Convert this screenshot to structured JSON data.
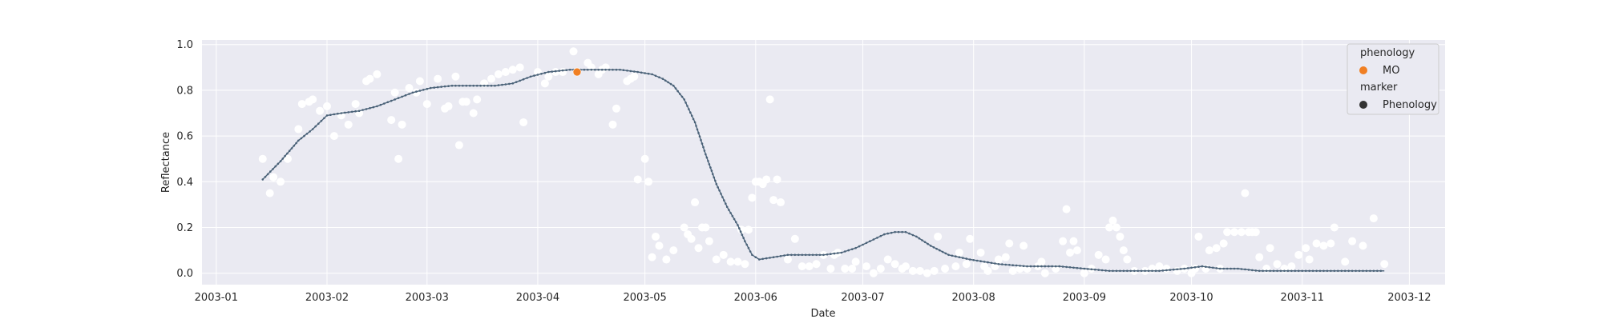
{
  "chart_data": {
    "type": "scatter",
    "xlabel": "Date",
    "ylabel": "Reflectance",
    "xlim": [
      "2002-12-28",
      "2003-12-11"
    ],
    "ylim": [
      -0.05,
      1.02
    ],
    "x_ticks": [
      "2003-01-01",
      "2003-02-01",
      "2003-03-01",
      "2003-04-01",
      "2003-05-01",
      "2003-06-01",
      "2003-07-01",
      "2003-08-01",
      "2003-09-01",
      "2003-10-01",
      "2003-11-01",
      "2003-12-01"
    ],
    "x_tick_labels": [
      "2003-01",
      "2003-02",
      "2003-03",
      "2003-04",
      "2003-05",
      "2003-06",
      "2003-07",
      "2003-08",
      "2003-09",
      "2003-10",
      "2003-11",
      "2003-12"
    ],
    "y_ticks": [
      0.0,
      0.2,
      0.4,
      0.6,
      0.8,
      1.0
    ],
    "y_tick_labels": [
      "0.0",
      "0.2",
      "0.4",
      "0.6",
      "0.8",
      "1.0"
    ],
    "grid": true,
    "style": "seaborn-darkgrid",
    "colors": {
      "background": "#eaeaf2",
      "grid": "#ffffff",
      "observations": "#ffffff",
      "curve": "#4a6278",
      "phenology_mo": "#f07f23",
      "legend_marker": "#333333"
    },
    "series": [
      {
        "role": "observations",
        "points": [
          [
            "2003-01-14",
            0.5
          ],
          [
            "2003-01-16",
            0.35
          ],
          [
            "2003-01-17",
            0.42
          ],
          [
            "2003-01-19",
            0.4
          ],
          [
            "2003-01-21",
            0.5
          ],
          [
            "2003-01-24",
            0.63
          ],
          [
            "2003-01-25",
            0.74
          ],
          [
            "2003-01-27",
            0.75
          ],
          [
            "2003-01-28",
            0.76
          ],
          [
            "2003-01-30",
            0.71
          ],
          [
            "2003-02-01",
            0.73
          ],
          [
            "2003-02-03",
            0.6
          ],
          [
            "2003-02-05",
            0.69
          ],
          [
            "2003-02-07",
            0.65
          ],
          [
            "2003-02-09",
            0.74
          ],
          [
            "2003-02-10",
            0.7
          ],
          [
            "2003-02-12",
            0.84
          ],
          [
            "2003-02-13",
            0.85
          ],
          [
            "2003-02-15",
            0.87
          ],
          [
            "2003-02-19",
            0.67
          ],
          [
            "2003-02-20",
            0.79
          ],
          [
            "2003-02-21",
            0.5
          ],
          [
            "2003-02-22",
            0.65
          ],
          [
            "2003-02-24",
            0.81
          ],
          [
            "2003-02-26",
            0.79
          ],
          [
            "2003-02-27",
            0.84
          ],
          [
            "2003-03-01",
            0.74
          ],
          [
            "2003-03-04",
            0.85
          ],
          [
            "2003-03-06",
            0.72
          ],
          [
            "2003-03-07",
            0.73
          ],
          [
            "2003-03-09",
            0.86
          ],
          [
            "2003-03-10",
            0.56
          ],
          [
            "2003-03-11",
            0.75
          ],
          [
            "2003-03-12",
            0.75
          ],
          [
            "2003-03-14",
            0.7
          ],
          [
            "2003-03-15",
            0.76
          ],
          [
            "2003-03-17",
            0.83
          ],
          [
            "2003-03-19",
            0.85
          ],
          [
            "2003-03-21",
            0.87
          ],
          [
            "2003-03-23",
            0.88
          ],
          [
            "2003-03-25",
            0.89
          ],
          [
            "2003-03-27",
            0.9
          ],
          [
            "2003-03-28",
            0.66
          ],
          [
            "2003-04-01",
            0.88
          ],
          [
            "2003-04-03",
            0.83
          ],
          [
            "2003-04-04",
            0.86
          ],
          [
            "2003-04-06",
            0.88
          ],
          [
            "2003-04-08",
            0.88
          ],
          [
            "2003-04-11",
            0.97
          ],
          [
            "2003-04-15",
            0.92
          ],
          [
            "2003-04-16",
            0.9
          ],
          [
            "2003-04-18",
            0.87
          ],
          [
            "2003-04-19",
            0.89
          ],
          [
            "2003-04-20",
            0.9
          ],
          [
            "2003-04-22",
            0.65
          ],
          [
            "2003-04-23",
            0.72
          ],
          [
            "2003-04-26",
            0.84
          ],
          [
            "2003-04-27",
            0.85
          ],
          [
            "2003-04-28",
            0.86
          ],
          [
            "2003-04-29",
            0.41
          ],
          [
            "2003-05-01",
            0.5
          ],
          [
            "2003-05-02",
            0.4
          ],
          [
            "2003-05-03",
            0.07
          ],
          [
            "2003-05-04",
            0.16
          ],
          [
            "2003-05-05",
            0.12
          ],
          [
            "2003-05-07",
            0.06
          ],
          [
            "2003-05-09",
            0.1
          ],
          [
            "2003-05-12",
            0.2
          ],
          [
            "2003-05-13",
            0.17
          ],
          [
            "2003-05-14",
            0.15
          ],
          [
            "2003-05-15",
            0.31
          ],
          [
            "2003-05-16",
            0.11
          ],
          [
            "2003-05-17",
            0.2
          ],
          [
            "2003-05-18",
            0.2
          ],
          [
            "2003-05-19",
            0.14
          ],
          [
            "2003-05-21",
            0.06
          ],
          [
            "2003-05-23",
            0.08
          ],
          [
            "2003-05-25",
            0.05
          ],
          [
            "2003-05-27",
            0.05
          ],
          [
            "2003-05-28",
            0.19
          ],
          [
            "2003-05-29",
            0.04
          ],
          [
            "2003-05-30",
            0.19
          ],
          [
            "2003-05-31",
            0.33
          ],
          [
            "2003-06-01",
            0.4
          ],
          [
            "2003-06-02",
            0.4
          ],
          [
            "2003-06-03",
            0.39
          ],
          [
            "2003-06-04",
            0.41
          ],
          [
            "2003-06-05",
            0.76
          ],
          [
            "2003-06-06",
            0.32
          ],
          [
            "2003-06-07",
            0.41
          ],
          [
            "2003-06-08",
            0.31
          ],
          [
            "2003-06-10",
            0.06
          ],
          [
            "2003-06-12",
            0.15
          ],
          [
            "2003-06-14",
            0.03
          ],
          [
            "2003-06-16",
            0.03
          ],
          [
            "2003-06-18",
            0.04
          ],
          [
            "2003-06-20",
            0.08
          ],
          [
            "2003-06-22",
            0.02
          ],
          [
            "2003-06-23",
            0.08
          ],
          [
            "2003-06-24",
            0.09
          ],
          [
            "2003-06-26",
            0.02
          ],
          [
            "2003-06-28",
            0.02
          ],
          [
            "2003-06-29",
            0.05
          ],
          [
            "2003-07-02",
            0.03
          ],
          [
            "2003-07-04",
            0.0
          ],
          [
            "2003-07-06",
            0.02
          ],
          [
            "2003-07-08",
            0.06
          ],
          [
            "2003-07-10",
            0.04
          ],
          [
            "2003-07-12",
            0.02
          ],
          [
            "2003-07-13",
            0.03
          ],
          [
            "2003-07-15",
            0.01
          ],
          [
            "2003-07-17",
            0.01
          ],
          [
            "2003-07-19",
            0.0
          ],
          [
            "2003-07-21",
            0.01
          ],
          [
            "2003-07-22",
            0.16
          ],
          [
            "2003-07-24",
            0.02
          ],
          [
            "2003-07-27",
            0.03
          ],
          [
            "2003-07-28",
            0.09
          ],
          [
            "2003-07-30",
            0.04
          ],
          [
            "2003-07-31",
            0.15
          ],
          [
            "2003-08-03",
            0.09
          ],
          [
            "2003-08-04",
            0.03
          ],
          [
            "2003-08-05",
            0.01
          ],
          [
            "2003-08-07",
            0.03
          ],
          [
            "2003-08-08",
            0.06
          ],
          [
            "2003-08-10",
            0.07
          ],
          [
            "2003-08-11",
            0.13
          ],
          [
            "2003-08-12",
            0.01
          ],
          [
            "2003-08-14",
            0.02
          ],
          [
            "2003-08-15",
            0.12
          ],
          [
            "2003-08-16",
            0.02
          ],
          [
            "2003-08-19",
            0.03
          ],
          [
            "2003-08-20",
            0.05
          ],
          [
            "2003-08-21",
            0.0
          ],
          [
            "2003-08-24",
            0.02
          ],
          [
            "2003-08-26",
            0.14
          ],
          [
            "2003-08-27",
            0.28
          ],
          [
            "2003-08-28",
            0.09
          ],
          [
            "2003-08-29",
            0.14
          ],
          [
            "2003-08-30",
            0.1
          ],
          [
            "2003-09-01",
            0.0
          ],
          [
            "2003-09-03",
            0.02
          ],
          [
            "2003-09-05",
            0.08
          ],
          [
            "2003-09-07",
            0.06
          ],
          [
            "2003-09-08",
            0.2
          ],
          [
            "2003-09-09",
            0.23
          ],
          [
            "2003-09-10",
            0.2
          ],
          [
            "2003-09-11",
            0.16
          ],
          [
            "2003-09-12",
            0.1
          ],
          [
            "2003-09-13",
            0.06
          ],
          [
            "2003-09-15",
            0.01
          ],
          [
            "2003-09-18",
            0.01
          ],
          [
            "2003-09-20",
            0.02
          ],
          [
            "2003-09-22",
            0.03
          ],
          [
            "2003-09-24",
            0.02
          ],
          [
            "2003-09-27",
            0.01
          ],
          [
            "2003-09-29",
            0.02
          ],
          [
            "2003-10-01",
            0.0
          ],
          [
            "2003-10-02",
            0.02
          ],
          [
            "2003-10-03",
            0.16
          ],
          [
            "2003-10-05",
            0.02
          ],
          [
            "2003-10-06",
            0.1
          ],
          [
            "2003-10-08",
            0.11
          ],
          [
            "2003-10-09",
            0.02
          ],
          [
            "2003-10-10",
            0.13
          ],
          [
            "2003-10-11",
            0.18
          ],
          [
            "2003-10-13",
            0.18
          ],
          [
            "2003-10-15",
            0.18
          ],
          [
            "2003-10-16",
            0.35
          ],
          [
            "2003-10-17",
            0.18
          ],
          [
            "2003-10-18",
            0.18
          ],
          [
            "2003-10-19",
            0.18
          ],
          [
            "2003-10-20",
            0.07
          ],
          [
            "2003-10-22",
            0.02
          ],
          [
            "2003-10-23",
            0.11
          ],
          [
            "2003-10-25",
            0.04
          ],
          [
            "2003-10-27",
            0.02
          ],
          [
            "2003-10-29",
            0.03
          ],
          [
            "2003-10-31",
            0.08
          ],
          [
            "2003-11-02",
            0.11
          ],
          [
            "2003-11-03",
            0.06
          ],
          [
            "2003-11-05",
            0.13
          ],
          [
            "2003-11-07",
            0.12
          ],
          [
            "2003-11-09",
            0.13
          ],
          [
            "2003-11-10",
            0.2
          ],
          [
            "2003-11-13",
            0.05
          ],
          [
            "2003-11-15",
            0.14
          ],
          [
            "2003-11-18",
            0.12
          ],
          [
            "2003-11-21",
            0.24
          ],
          [
            "2003-11-24",
            0.04
          ]
        ]
      },
      {
        "role": "fitted-curve",
        "points": [
          [
            "2003-01-14",
            0.41
          ],
          [
            "2003-01-19",
            0.49
          ],
          [
            "2003-01-24",
            0.58
          ],
          [
            "2003-01-28",
            0.63
          ],
          [
            "2003-02-01",
            0.69
          ],
          [
            "2003-02-05",
            0.7
          ],
          [
            "2003-02-10",
            0.71
          ],
          [
            "2003-02-15",
            0.73
          ],
          [
            "2003-02-20",
            0.76
          ],
          [
            "2003-02-25",
            0.79
          ],
          [
            "2003-03-02",
            0.81
          ],
          [
            "2003-03-08",
            0.82
          ],
          [
            "2003-03-14",
            0.82
          ],
          [
            "2003-03-20",
            0.82
          ],
          [
            "2003-03-25",
            0.83
          ],
          [
            "2003-03-30",
            0.86
          ],
          [
            "2003-04-04",
            0.88
          ],
          [
            "2003-04-10",
            0.89
          ],
          [
            "2003-04-17",
            0.89
          ],
          [
            "2003-04-24",
            0.89
          ],
          [
            "2003-04-29",
            0.88
          ],
          [
            "2003-05-03",
            0.87
          ],
          [
            "2003-05-06",
            0.85
          ],
          [
            "2003-05-09",
            0.82
          ],
          [
            "2003-05-12",
            0.76
          ],
          [
            "2003-05-15",
            0.66
          ],
          [
            "2003-05-18",
            0.52
          ],
          [
            "2003-05-21",
            0.39
          ],
          [
            "2003-05-24",
            0.29
          ],
          [
            "2003-05-27",
            0.21
          ],
          [
            "2003-05-29",
            0.14
          ],
          [
            "2003-05-31",
            0.08
          ],
          [
            "2003-06-02",
            0.06
          ],
          [
            "2003-06-06",
            0.07
          ],
          [
            "2003-06-10",
            0.08
          ],
          [
            "2003-06-15",
            0.08
          ],
          [
            "2003-06-20",
            0.08
          ],
          [
            "2003-06-25",
            0.09
          ],
          [
            "2003-06-29",
            0.11
          ],
          [
            "2003-07-03",
            0.14
          ],
          [
            "2003-07-07",
            0.17
          ],
          [
            "2003-07-10",
            0.18
          ],
          [
            "2003-07-13",
            0.18
          ],
          [
            "2003-07-16",
            0.16
          ],
          [
            "2003-07-20",
            0.12
          ],
          [
            "2003-07-25",
            0.08
          ],
          [
            "2003-07-31",
            0.06
          ],
          [
            "2003-08-08",
            0.04
          ],
          [
            "2003-08-16",
            0.03
          ],
          [
            "2003-08-25",
            0.03
          ],
          [
            "2003-09-01",
            0.02
          ],
          [
            "2003-09-08",
            0.01
          ],
          [
            "2003-09-15",
            0.01
          ],
          [
            "2003-09-22",
            0.01
          ],
          [
            "2003-09-29",
            0.02
          ],
          [
            "2003-10-04",
            0.03
          ],
          [
            "2003-10-09",
            0.02
          ],
          [
            "2003-10-14",
            0.02
          ],
          [
            "2003-10-20",
            0.01
          ],
          [
            "2003-10-27",
            0.01
          ],
          [
            "2003-11-03",
            0.01
          ],
          [
            "2003-11-10",
            0.01
          ],
          [
            "2003-11-17",
            0.01
          ],
          [
            "2003-11-24",
            0.01
          ]
        ]
      },
      {
        "name": "MO",
        "role": "phenology",
        "points": [
          [
            "2003-04-12",
            0.88
          ]
        ]
      }
    ],
    "legend": {
      "position": "top-right",
      "title_1": "phenology",
      "entry_1": "MO",
      "title_2": "marker",
      "entry_2": "Phenology"
    }
  }
}
